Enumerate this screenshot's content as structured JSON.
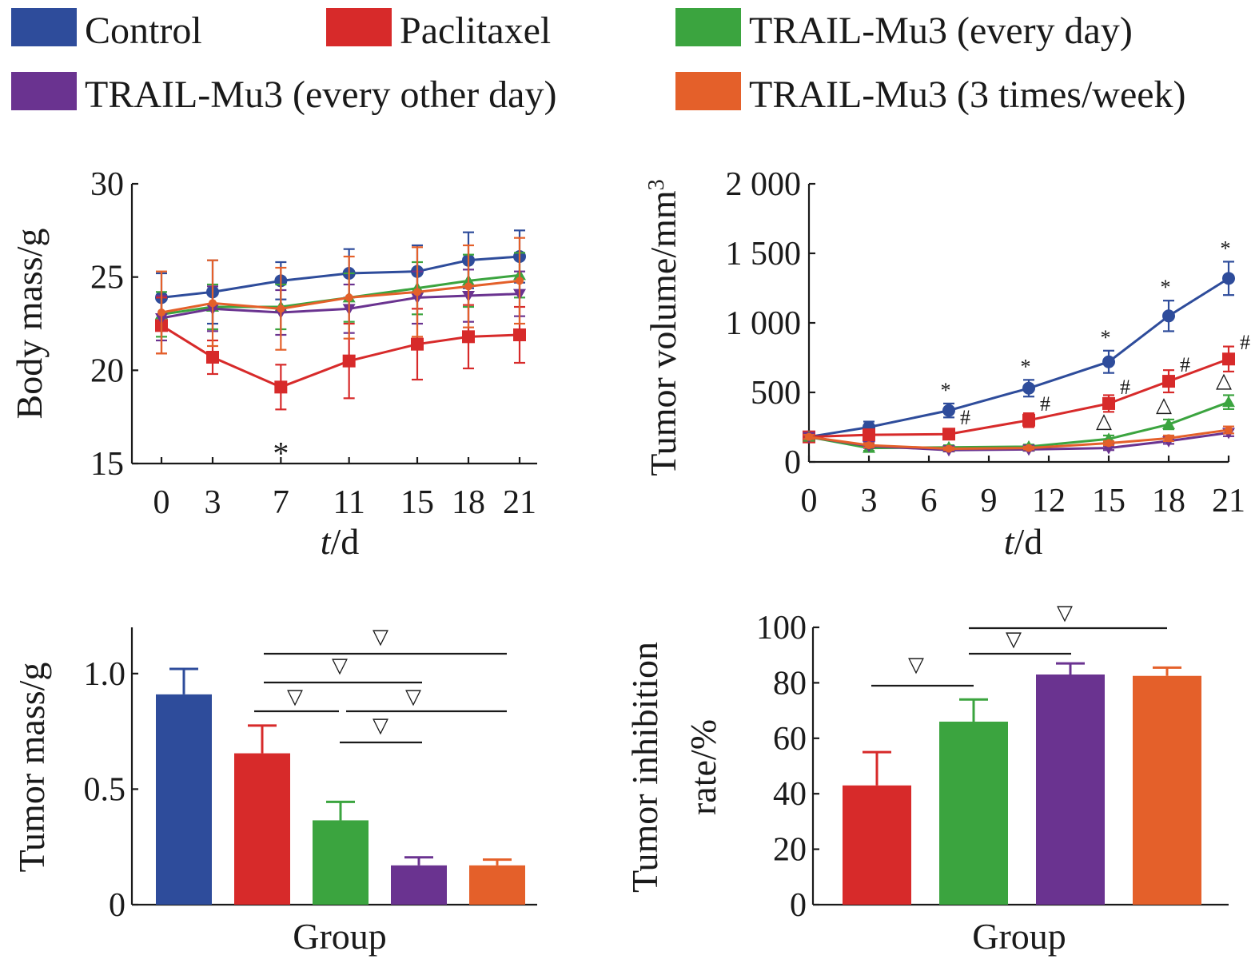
{
  "legend": [
    {
      "label": "Control",
      "color": "#2E4C9B"
    },
    {
      "label": "Paclitaxel",
      "color": "#D72A2A"
    },
    {
      "label": "TRAIL-Mu3 (every day)",
      "color": "#3BA43F"
    },
    {
      "label": "TRAIL-Mu3 (every other day)",
      "color": "#6A3390"
    },
    {
      "label": "TRAIL-Mu3 (3 times/week)",
      "color": "#E4602A"
    }
  ],
  "chart_data": [
    {
      "type": "line",
      "xlabel_italic": "t",
      "xlabel_rest": "/d",
      "ylabel": "Body mass/g",
      "ylim": [
        15,
        30
      ],
      "y_ticks": [
        "15",
        "20",
        "25",
        "30"
      ],
      "x": [
        0,
        3,
        7,
        11,
        15,
        18,
        21
      ],
      "x_ticks": [
        "0",
        "3",
        "7",
        "11",
        "15",
        "18",
        "21"
      ],
      "series": [
        {
          "name": "Control",
          "values": [
            23.9,
            24.2,
            24.8,
            25.2,
            25.3,
            25.9,
            26.1
          ],
          "errors": [
            1.3,
            1.7,
            1.0,
            1.3,
            1.4,
            1.5,
            1.4
          ]
        },
        {
          "name": "Paclitaxel",
          "values": [
            22.4,
            20.7,
            19.1,
            20.5,
            21.4,
            21.8,
            21.9
          ],
          "errors": [
            1.5,
            0.9,
            1.2,
            2.0,
            1.9,
            1.7,
            1.5
          ]
        },
        {
          "name": "TRAIL-Mu3 (every day)",
          "values": [
            23.0,
            23.4,
            23.4,
            23.9,
            24.4,
            24.8,
            25.1
          ],
          "errors": [
            1.2,
            1.2,
            1.2,
            1.3,
            1.4,
            1.4,
            1.2
          ]
        },
        {
          "name": "TRAIL-Mu3 (every other day)",
          "values": [
            22.8,
            23.3,
            23.1,
            23.3,
            23.9,
            24.0,
            24.1
          ],
          "errors": [
            1.2,
            1.2,
            1.2,
            1.3,
            1.4,
            1.4,
            1.2
          ]
        },
        {
          "name": "TRAIL-Mu3 (3 times/week)",
          "values": [
            23.1,
            23.6,
            23.3,
            23.9,
            24.2,
            24.5,
            24.8
          ],
          "errors": [
            2.2,
            2.3,
            2.2,
            2.2,
            2.4,
            2.2,
            2.3
          ]
        }
      ],
      "annotations": [
        {
          "text": "*",
          "x": 7
        }
      ]
    },
    {
      "type": "line",
      "xlabel_italic": "t",
      "xlabel_rest": "/d",
      "ylabel": "Tumor volume/mm",
      "ylabel_sup": "3",
      "ylim": [
        0,
        2000
      ],
      "y_ticks": [
        "0",
        "500",
        "1 000",
        "1 500",
        "2 000"
      ],
      "x": [
        0,
        3,
        7,
        11,
        15,
        18,
        21
      ],
      "x_ticks": [
        "0",
        "3",
        "6",
        "9",
        "12",
        "15",
        "18",
        "21"
      ],
      "series": [
        {
          "name": "Control",
          "values": [
            180,
            250,
            370,
            530,
            720,
            1050,
            1320
          ],
          "errors": [
            20,
            40,
            50,
            60,
            80,
            110,
            120
          ]
        },
        {
          "name": "Paclitaxel",
          "values": [
            180,
            195,
            200,
            300,
            420,
            580,
            740
          ],
          "errors": [
            20,
            30,
            30,
            50,
            60,
            80,
            90
          ]
        },
        {
          "name": "TRAIL-Mu3 (every day)",
          "values": [
            180,
            100,
            105,
            110,
            165,
            270,
            430
          ],
          "errors": [
            15,
            20,
            15,
            15,
            25,
            35,
            50
          ]
        },
        {
          "name": "TRAIL-Mu3 (every other day)",
          "values": [
            180,
            115,
            85,
            90,
            100,
            150,
            210
          ],
          "errors": [
            15,
            15,
            10,
            10,
            15,
            20,
            25
          ]
        },
        {
          "name": "TRAIL-Mu3 (3 times/week)",
          "values": [
            180,
            120,
            95,
            100,
            135,
            170,
            230
          ],
          "errors": [
            15,
            15,
            10,
            10,
            15,
            20,
            25
          ]
        }
      ],
      "annotations": [
        "*",
        "#",
        "△"
      ]
    },
    {
      "type": "bar",
      "xlabel": "Group",
      "ylabel": "Tumor mass/g",
      "ylim": [
        0,
        1.2
      ],
      "y_ticks": [
        "0",
        "0.5",
        "1.0"
      ],
      "categories": [
        "Control",
        "Paclitaxel",
        "TRAIL-Mu3 (every day)",
        "TRAIL-Mu3 (every other day)",
        "TRAIL-Mu3 (3 times/week)"
      ],
      "values": [
        0.91,
        0.655,
        0.365,
        0.17,
        0.17
      ],
      "errors": [
        0.11,
        0.12,
        0.08,
        0.035,
        0.025
      ],
      "brackets": [
        {
          "from": 1,
          "to": 4,
          "symbol": "▽"
        },
        {
          "from": 1,
          "to": 3,
          "symbol": "▽"
        },
        {
          "from": 1,
          "to": 2,
          "symbol": "▽"
        },
        {
          "from": 2,
          "to": 4,
          "symbol": "▽"
        },
        {
          "from": 2,
          "to": 3,
          "symbol": "▽"
        }
      ]
    },
    {
      "type": "bar",
      "xlabel": "Group",
      "ylabel_line1": "Tumor inhibition",
      "ylabel_line2": "rate/%",
      "ylim": [
        0,
        100
      ],
      "y_ticks": [
        "0",
        "20",
        "40",
        "60",
        "80",
        "100"
      ],
      "categories": [
        "Paclitaxel",
        "TRAIL-Mu3 (every day)",
        "TRAIL-Mu3 (every other day)",
        "TRAIL-Mu3 (3 times/week)"
      ],
      "values": [
        43,
        66,
        83,
        82.5
      ],
      "errors": [
        12,
        8,
        4,
        3
      ],
      "brackets": [
        {
          "from": 0,
          "to": 1,
          "symbol": "▽"
        },
        {
          "from": 1,
          "to": 2,
          "symbol": "▽"
        },
        {
          "from": 1,
          "to": 3,
          "symbol": "▽"
        }
      ]
    }
  ]
}
